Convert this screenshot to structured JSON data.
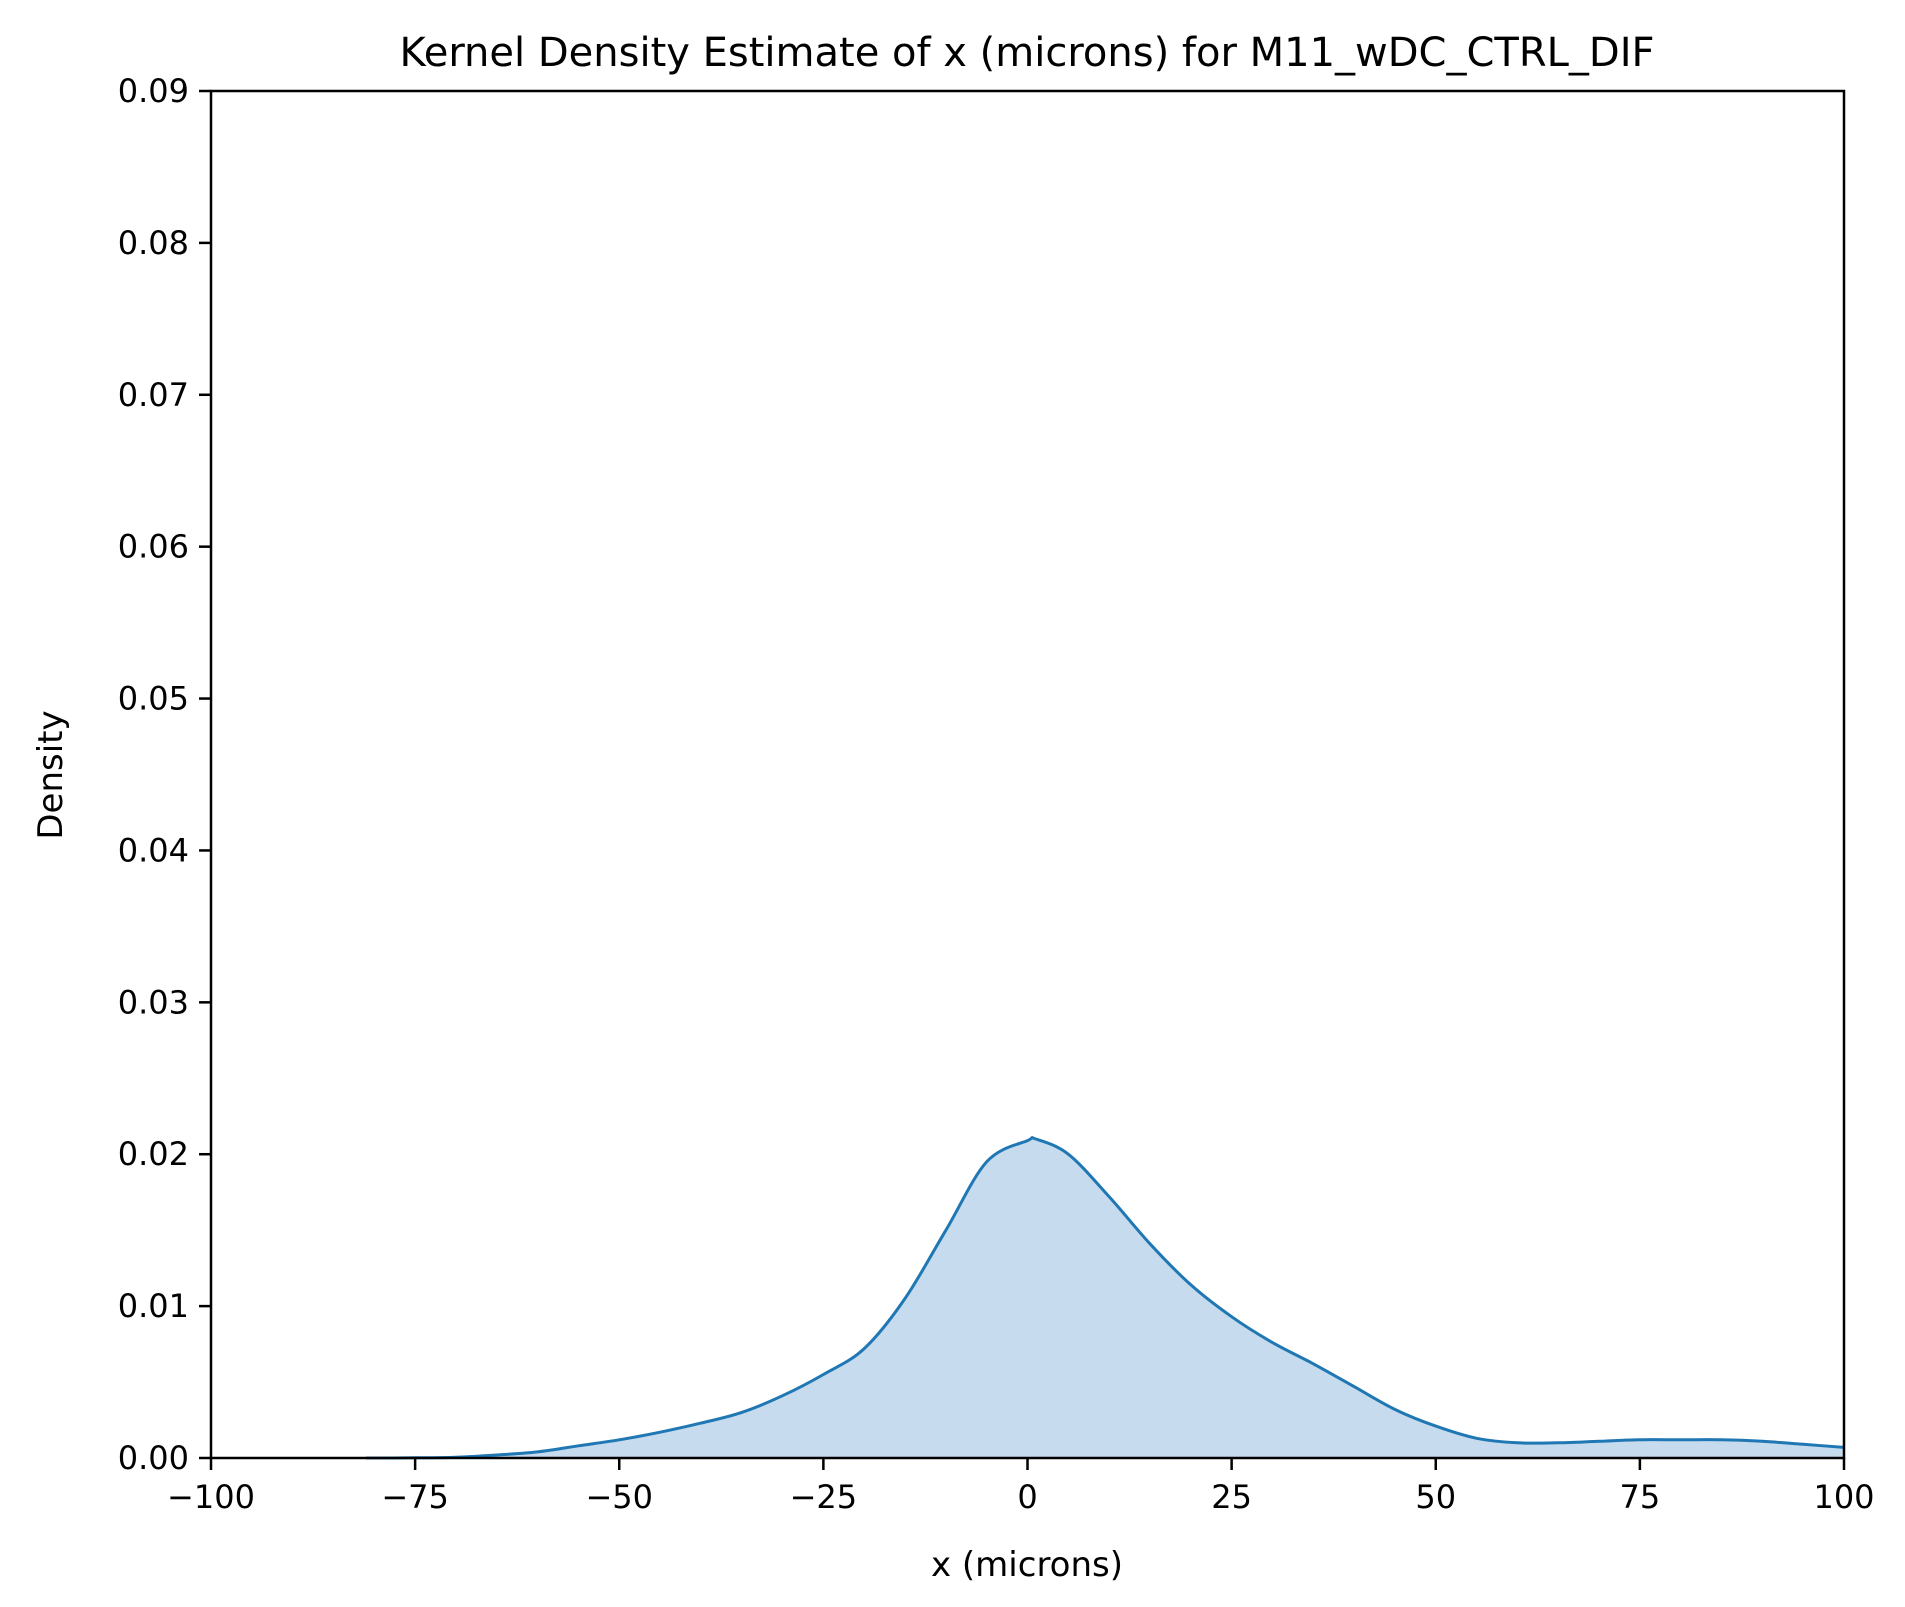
{
  "chart_data": {
    "type": "area",
    "title": "Kernel Density Estimate of x (microns) for M11_wDC_CTRL_DIF",
    "xlabel": "x (microns)",
    "ylabel": "Density",
    "xlim": [
      -100,
      100
    ],
    "ylim": [
      0,
      0.09
    ],
    "x_ticks": [
      -100,
      -75,
      -50,
      -25,
      0,
      25,
      50,
      75,
      100
    ],
    "x_tick_labels": [
      "−100",
      "−75",
      "−50",
      "−25",
      "0",
      "25",
      "50",
      "75",
      "100"
    ],
    "y_ticks": [
      0,
      0.01,
      0.02,
      0.03,
      0.04,
      0.05,
      0.06,
      0.07,
      0.08,
      0.09
    ],
    "y_tick_labels": [
      "0.00",
      "0.01",
      "0.02",
      "0.03",
      "0.04",
      "0.05",
      "0.06",
      "0.07",
      "0.08",
      "0.09"
    ],
    "grid": false,
    "legend": "none",
    "series": [
      {
        "color": "#1f77b4",
        "fill_color": "#c6dbed",
        "points": [
          [
            -81,
            0.0
          ],
          [
            -75,
            1e-05
          ],
          [
            -70,
            5e-05
          ],
          [
            -65,
            0.0002
          ],
          [
            -60,
            0.0004
          ],
          [
            -55,
            0.0008
          ],
          [
            -50,
            0.0012
          ],
          [
            -45,
            0.0017
          ],
          [
            -40,
            0.0023
          ],
          [
            -35,
            0.003
          ],
          [
            -30,
            0.0041
          ],
          [
            -25,
            0.0055
          ],
          [
            -20,
            0.0072
          ],
          [
            -15,
            0.0105
          ],
          [
            -10,
            0.015
          ],
          [
            -5,
            0.0195
          ],
          [
            0,
            0.0209
          ],
          [
            1,
            0.021
          ],
          [
            5,
            0.02
          ],
          [
            10,
            0.0172
          ],
          [
            15,
            0.0141
          ],
          [
            20,
            0.0114
          ],
          [
            25,
            0.0093
          ],
          [
            30,
            0.0076
          ],
          [
            35,
            0.0062
          ],
          [
            40,
            0.0047
          ],
          [
            45,
            0.0032
          ],
          [
            50,
            0.0021
          ],
          [
            55,
            0.0013
          ],
          [
            60,
            0.001
          ],
          [
            65,
            0.001
          ],
          [
            70,
            0.0011
          ],
          [
            75,
            0.0012
          ],
          [
            80,
            0.0012
          ],
          [
            85,
            0.0012
          ],
          [
            90,
            0.0011
          ],
          [
            95,
            0.0009
          ],
          [
            100,
            0.0007
          ]
        ]
      }
    ]
  }
}
